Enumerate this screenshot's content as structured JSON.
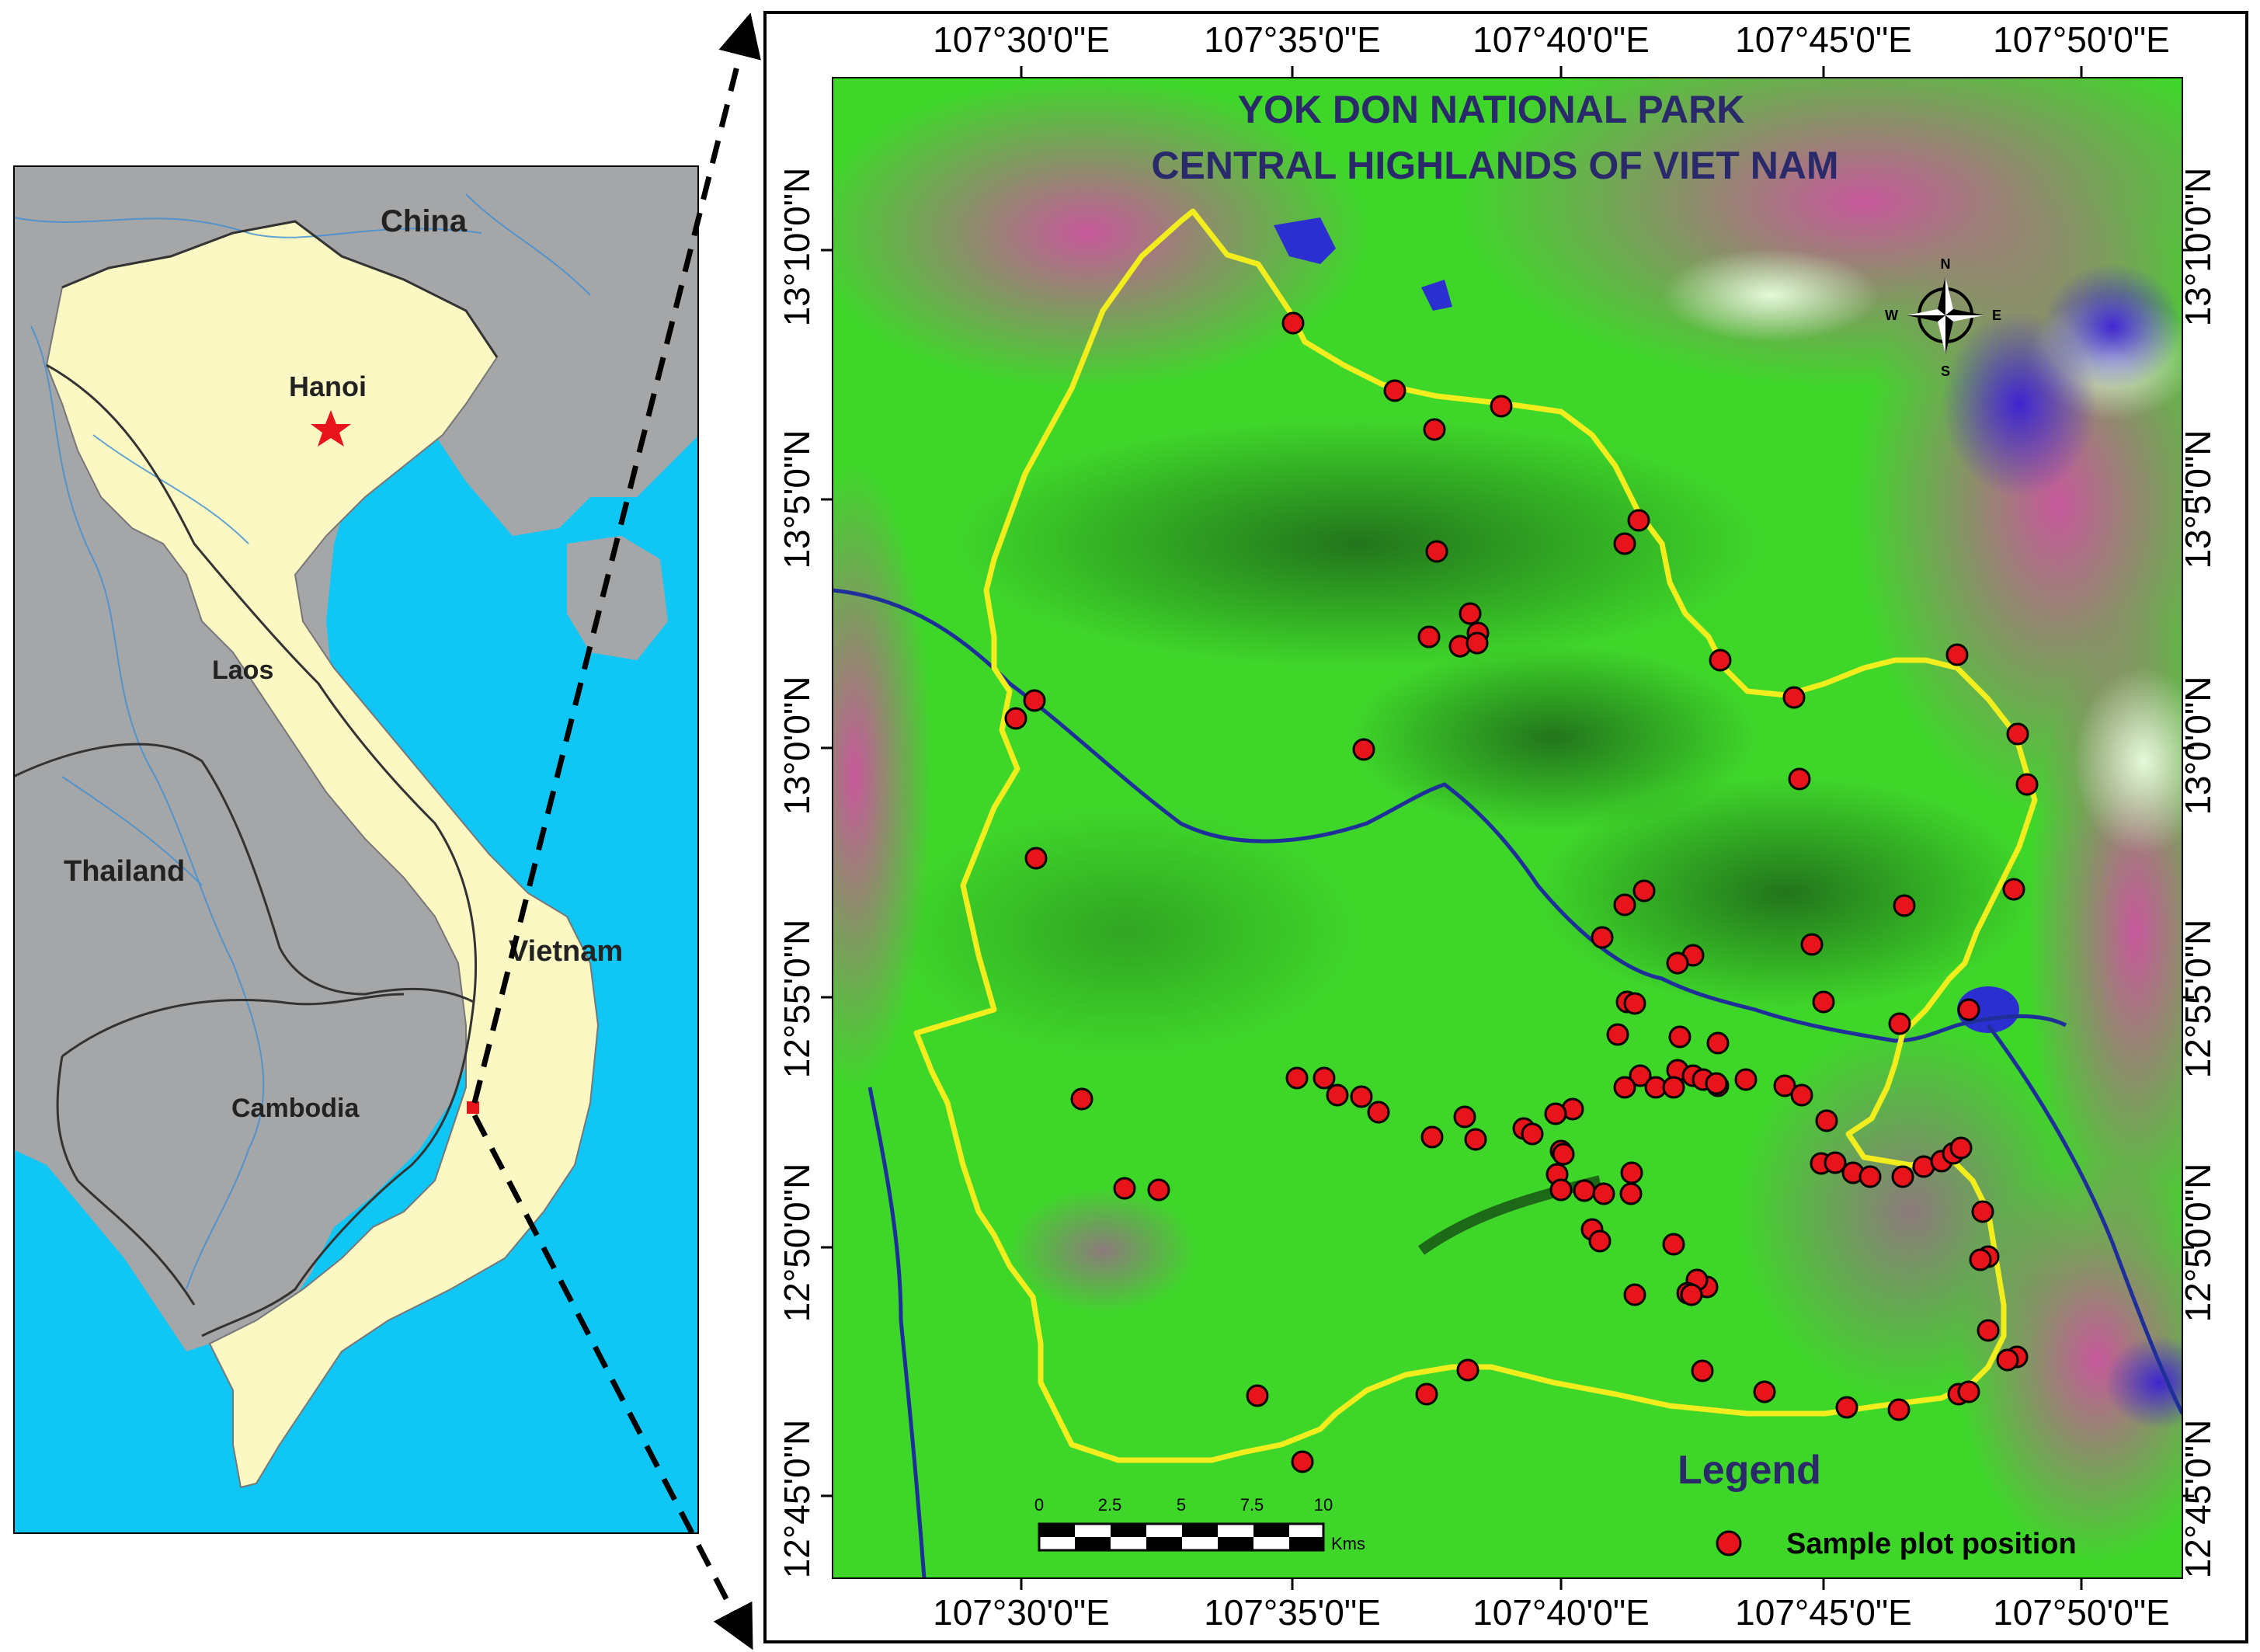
{
  "overview_map": {
    "countries": [
      "China",
      "Laos",
      "Thailand",
      "Vietnam",
      "Cambodia"
    ],
    "capital": "Hanoi"
  },
  "detail_map": {
    "title_line1": "YOK DON NATIONAL PARK",
    "title_line2": "CENTRAL HIGHLANDS OF VIET NAM",
    "lon_labels": [
      "107°30'0\"E",
      "107°35'0\"E",
      "107°40'0\"E",
      "107°45'0\"E",
      "107°50'0\"E"
    ],
    "lat_labels": [
      "13°10'0\"N",
      "13°5'0\"N",
      "13°0'0\"N",
      "12°55'0\"N",
      "12°50'0\"N",
      "12°45'0\"N"
    ],
    "compass": {
      "n": "N",
      "s": "S",
      "e": "E",
      "w": "W"
    },
    "scale_bar": {
      "ticks": [
        "0",
        "2.5",
        "5",
        "7.5",
        "10"
      ],
      "unit": "Kms"
    },
    "legend": {
      "title": "Legend",
      "item": "Sample plot position"
    },
    "colors": {
      "plot_marker": "#e8141c",
      "boundary": "#f2ee1e",
      "river": "#1f2f9a"
    }
  }
}
